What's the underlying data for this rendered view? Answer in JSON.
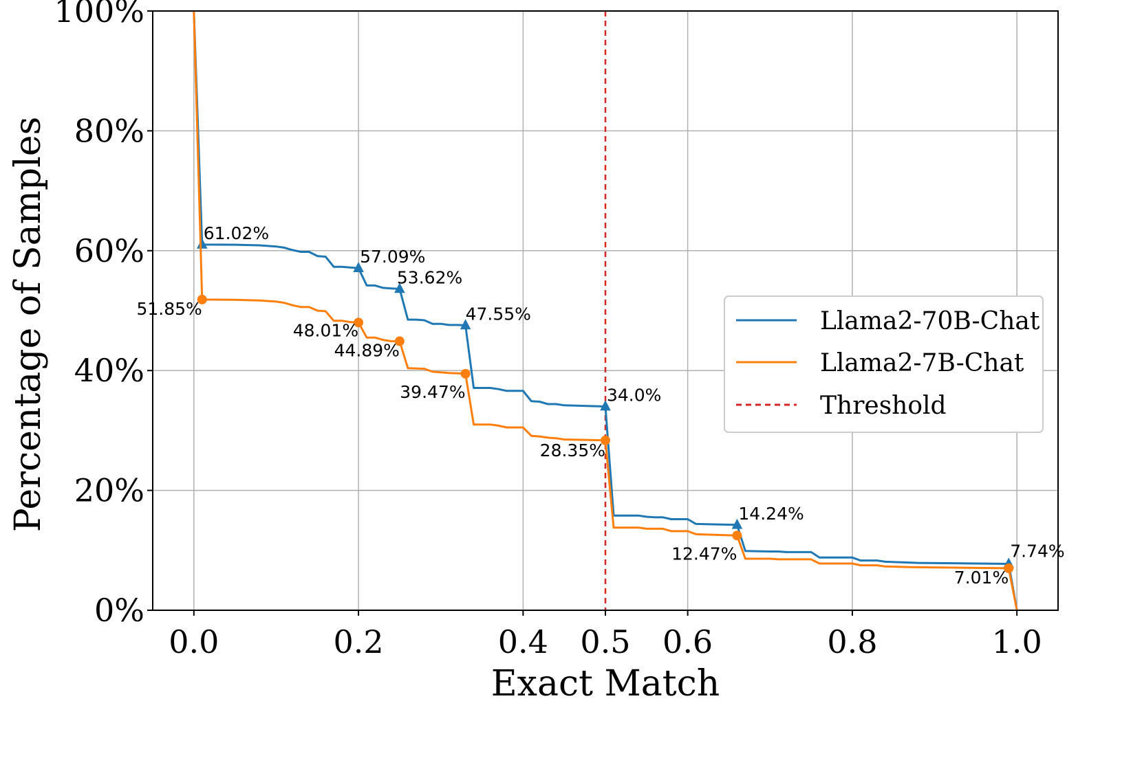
{
  "chart_data": {
    "type": "line",
    "xlabel": "Exact Match",
    "ylabel": "Percentage of Samples",
    "xlim": [
      -0.05,
      1.05
    ],
    "ylim": [
      0,
      100
    ],
    "x_ticks": [
      0.0,
      0.2,
      0.4,
      0.5,
      0.6,
      0.8,
      1.0
    ],
    "x_tick_labels": [
      "0.0",
      "0.2",
      "0.4",
      "0.5",
      "0.6",
      "0.8",
      "1.0"
    ],
    "highlight_tick": "0.5",
    "y_ticks": [
      0,
      20,
      40,
      60,
      80,
      100
    ],
    "y_tick_labels": [
      "0%",
      "20%",
      "40%",
      "60%",
      "80%",
      "100%"
    ],
    "grid": true,
    "legend_position": "center-right",
    "threshold": {
      "name": "Threshold",
      "x": 0.5,
      "color": "#d62728"
    },
    "series": [
      {
        "name": "Llama2-70B-Chat",
        "color": "#1f77b4",
        "marker": "triangle",
        "points": [
          [
            0.0,
            100
          ],
          [
            0.01,
            61.02
          ],
          [
            0.05,
            61.0
          ],
          [
            0.08,
            60.9
          ],
          [
            0.1,
            60.7
          ],
          [
            0.11,
            60.5
          ],
          [
            0.12,
            60.1
          ],
          [
            0.13,
            59.8
          ],
          [
            0.14,
            59.8
          ],
          [
            0.15,
            59.1
          ],
          [
            0.16,
            59.0
          ],
          [
            0.17,
            57.3
          ],
          [
            0.18,
            57.3
          ],
          [
            0.19,
            57.2
          ],
          [
            0.2,
            57.09
          ],
          [
            0.21,
            54.2
          ],
          [
            0.22,
            54.2
          ],
          [
            0.23,
            53.8
          ],
          [
            0.24,
            53.7
          ],
          [
            0.25,
            53.62
          ],
          [
            0.26,
            48.5
          ],
          [
            0.27,
            48.5
          ],
          [
            0.28,
            48.4
          ],
          [
            0.29,
            47.8
          ],
          [
            0.3,
            47.8
          ],
          [
            0.31,
            47.6
          ],
          [
            0.32,
            47.6
          ],
          [
            0.33,
            47.55
          ],
          [
            0.34,
            37.1
          ],
          [
            0.36,
            37.1
          ],
          [
            0.37,
            36.9
          ],
          [
            0.38,
            36.6
          ],
          [
            0.4,
            36.6
          ],
          [
            0.41,
            34.9
          ],
          [
            0.42,
            34.8
          ],
          [
            0.43,
            34.4
          ],
          [
            0.44,
            34.4
          ],
          [
            0.45,
            34.2
          ],
          [
            0.5,
            34.0
          ],
          [
            0.51,
            15.8
          ],
          [
            0.54,
            15.8
          ],
          [
            0.55,
            15.6
          ],
          [
            0.56,
            15.5
          ],
          [
            0.57,
            15.5
          ],
          [
            0.58,
            15.2
          ],
          [
            0.6,
            15.2
          ],
          [
            0.61,
            14.4
          ],
          [
            0.64,
            14.3
          ],
          [
            0.66,
            14.24
          ],
          [
            0.67,
            9.9
          ],
          [
            0.7,
            9.8
          ],
          [
            0.71,
            9.8
          ],
          [
            0.72,
            9.7
          ],
          [
            0.75,
            9.7
          ],
          [
            0.76,
            8.8
          ],
          [
            0.8,
            8.8
          ],
          [
            0.81,
            8.3
          ],
          [
            0.83,
            8.3
          ],
          [
            0.84,
            8.1
          ],
          [
            0.86,
            8.0
          ],
          [
            0.88,
            7.9
          ],
          [
            0.99,
            7.74
          ],
          [
            1.0,
            0
          ]
        ],
        "annotated": [
          {
            "x": 0.01,
            "y": 61.02,
            "label": "61.02%"
          },
          {
            "x": 0.2,
            "y": 57.09,
            "label": "57.09%"
          },
          {
            "x": 0.25,
            "y": 53.62,
            "label": "53.62%"
          },
          {
            "x": 0.33,
            "y": 47.55,
            "label": "47.55%"
          },
          {
            "x": 0.5,
            "y": 34.0,
            "label": "34.0%"
          },
          {
            "x": 0.66,
            "y": 14.24,
            "label": "14.24%"
          },
          {
            "x": 0.99,
            "y": 7.74,
            "label": "7.74%"
          }
        ]
      },
      {
        "name": "Llama2-7B-Chat",
        "color": "#ff7f0e",
        "marker": "circle",
        "points": [
          [
            0.0,
            100
          ],
          [
            0.01,
            51.85
          ],
          [
            0.05,
            51.8
          ],
          [
            0.08,
            51.7
          ],
          [
            0.1,
            51.5
          ],
          [
            0.11,
            51.3
          ],
          [
            0.12,
            50.9
          ],
          [
            0.13,
            50.6
          ],
          [
            0.14,
            50.6
          ],
          [
            0.15,
            50.0
          ],
          [
            0.16,
            49.9
          ],
          [
            0.17,
            48.3
          ],
          [
            0.18,
            48.3
          ],
          [
            0.19,
            48.1
          ],
          [
            0.2,
            48.01
          ],
          [
            0.21,
            45.5
          ],
          [
            0.22,
            45.5
          ],
          [
            0.23,
            45.1
          ],
          [
            0.24,
            44.9
          ],
          [
            0.25,
            44.89
          ],
          [
            0.26,
            40.4
          ],
          [
            0.28,
            40.3
          ],
          [
            0.29,
            39.8
          ],
          [
            0.31,
            39.6
          ],
          [
            0.33,
            39.47
          ],
          [
            0.34,
            31.0
          ],
          [
            0.36,
            31.0
          ],
          [
            0.37,
            30.8
          ],
          [
            0.38,
            30.5
          ],
          [
            0.4,
            30.5
          ],
          [
            0.41,
            29.1
          ],
          [
            0.42,
            29.0
          ],
          [
            0.43,
            28.8
          ],
          [
            0.44,
            28.7
          ],
          [
            0.45,
            28.5
          ],
          [
            0.5,
            28.35
          ],
          [
            0.51,
            13.8
          ],
          [
            0.54,
            13.8
          ],
          [
            0.55,
            13.6
          ],
          [
            0.57,
            13.6
          ],
          [
            0.58,
            13.2
          ],
          [
            0.6,
            13.2
          ],
          [
            0.61,
            12.7
          ],
          [
            0.63,
            12.6
          ],
          [
            0.66,
            12.47
          ],
          [
            0.67,
            8.6
          ],
          [
            0.7,
            8.6
          ],
          [
            0.71,
            8.5
          ],
          [
            0.75,
            8.5
          ],
          [
            0.76,
            7.8
          ],
          [
            0.8,
            7.8
          ],
          [
            0.81,
            7.5
          ],
          [
            0.83,
            7.5
          ],
          [
            0.84,
            7.3
          ],
          [
            0.87,
            7.2
          ],
          [
            0.99,
            7.01
          ],
          [
            1.0,
            0
          ]
        ],
        "annotated": [
          {
            "x": 0.01,
            "y": 51.85,
            "label": "51.85%"
          },
          {
            "x": 0.2,
            "y": 48.01,
            "label": "48.01%"
          },
          {
            "x": 0.25,
            "y": 44.89,
            "label": "44.89%"
          },
          {
            "x": 0.33,
            "y": 39.47,
            "label": "39.47%"
          },
          {
            "x": 0.5,
            "y": 28.35,
            "label": "28.35%"
          },
          {
            "x": 0.66,
            "y": 12.47,
            "label": "12.47%"
          },
          {
            "x": 0.99,
            "y": 7.01,
            "label": "7.01%"
          }
        ]
      }
    ]
  }
}
